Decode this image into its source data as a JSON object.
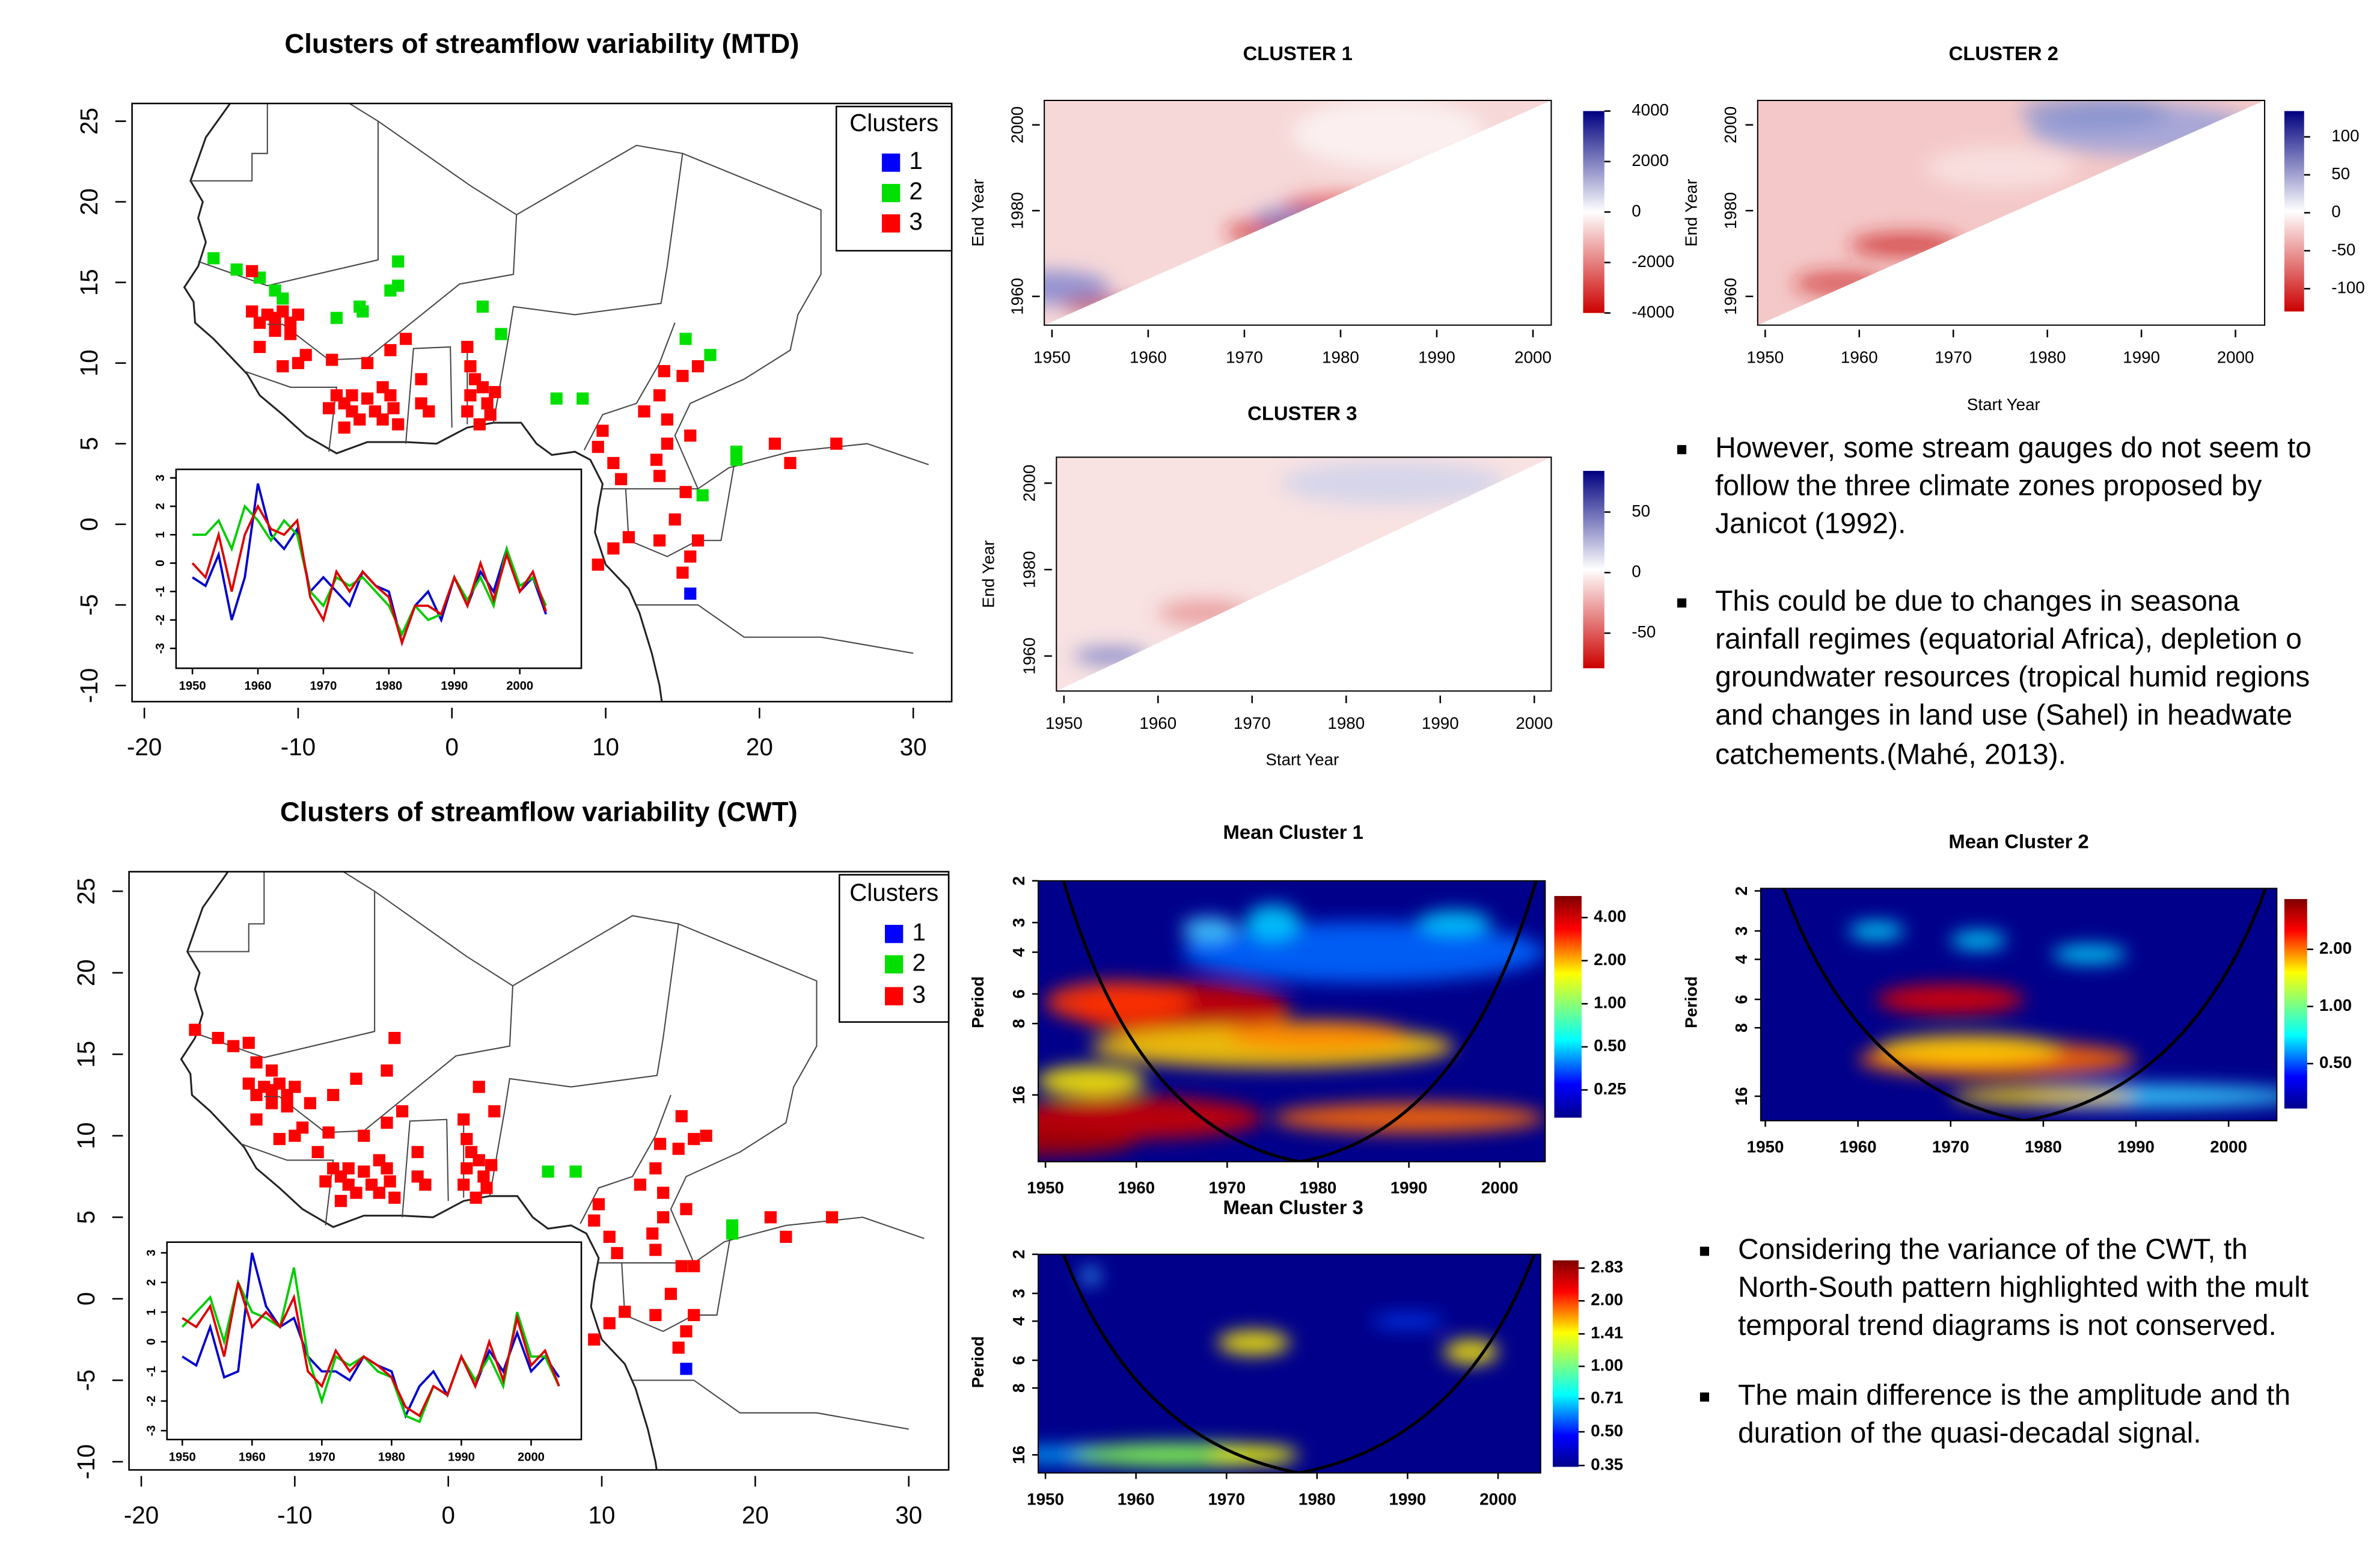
{
  "maps": [
    {
      "title": "Clusters of streamflow variability (MTD)",
      "xlim": [
        -20.8,
        32.5
      ],
      "ylim": [
        -11,
        26.1
      ],
      "xticks": [
        -20,
        -10,
        0,
        10,
        20,
        30
      ],
      "yticks": [
        -10,
        -5,
        0,
        5,
        10,
        15,
        20,
        25
      ],
      "legend_title": "Clusters",
      "series": [
        {
          "name": "1",
          "color": "#0000ff",
          "lon": [
            15.5
          ],
          "lat": [
            -4.3
          ]
        },
        {
          "name": "2",
          "color": "#00e000",
          "lon": [
            -15.5,
            -14,
            -12.5,
            -11.5,
            -11,
            -7.5,
            -5.8,
            -4,
            -3.5,
            -3.5,
            -6,
            2,
            3.2,
            6.8,
            8.5,
            15.2,
            16.8,
            18.5,
            18.5,
            16.3
          ],
          "lat": [
            16.5,
            15.8,
            15.3,
            14.5,
            14,
            12.8,
            13.2,
            14.5,
            14.8,
            16.3,
            13.5,
            13.5,
            11.8,
            7.8,
            7.8,
            11.5,
            10.5,
            4.5,
            4,
            1.8
          ]
        },
        {
          "name": "3",
          "color": "#ff0000",
          "lon": [
            -13,
            -13,
            -12.5,
            -12,
            -11.5,
            -11,
            -10.5,
            -10,
            -11.5,
            -10.5,
            -9.5,
            -10,
            -11,
            -12.5,
            -7.8,
            -5.5,
            -4,
            -3,
            -7.5,
            -8,
            -7,
            -6.5,
            -6,
            -5.5,
            -5,
            -4.5,
            -3.5,
            -3.8,
            -4,
            -6.5,
            -7,
            -4.5,
            -2,
            -2,
            -1.5,
            1,
            1.2,
            1.5,
            2,
            1.2,
            2.3,
            1,
            2.5,
            1.8,
            2.8,
            9.8,
            9.5,
            10.5,
            11,
            13.5,
            13.3,
            14,
            12.5,
            13.5,
            13.8,
            15,
            16,
            14,
            15.2,
            14.5,
            13.5,
            15.5,
            16,
            15,
            10.5,
            11.5,
            9.5,
            21,
            22,
            25,
            15.5
          ],
          "lat": [
            15.7,
            13.2,
            12.5,
            13,
            12.8,
            13.2,
            12.5,
            13,
            12,
            11.8,
            10.5,
            10,
            9.8,
            11,
            10.2,
            10,
            10.8,
            11.5,
            8,
            7.2,
            7.5,
            7,
            6.5,
            7.8,
            7,
            6.5,
            6.2,
            7.2,
            8,
            8,
            6,
            8.5,
            9,
            7.5,
            7,
            11,
            9.8,
            9,
            8.5,
            8,
            7.5,
            7,
            6.8,
            6.2,
            8.2,
            5.8,
            4.8,
            3.8,
            2.8,
            3,
            4,
            5,
            7,
            8,
            9.5,
            9.2,
            9.8,
            6.5,
            2,
            0.3,
            -1,
            -2,
            -1,
            -3,
            -1.5,
            -0.8,
            -2.5,
            5,
            3.8,
            5,
            5.5
          ]
        }
      ],
      "inset": {
        "xlim": [
          1947.5,
          2009.4
        ],
        "ylim": [
          -3.7,
          3.3
        ],
        "xticks": [
          1950,
          1960,
          1970,
          1980,
          1990,
          2000
        ],
        "yticks": [
          -3,
          -2,
          -1,
          0,
          1,
          2,
          3
        ],
        "x": [
          1950,
          1952,
          1954,
          1956,
          1958,
          1960,
          1962,
          1964,
          1966,
          1968,
          1970,
          1972,
          1974,
          1976,
          1978,
          1980,
          1982,
          1984,
          1986,
          1988,
          1990,
          1992,
          1994,
          1996,
          1998,
          2000,
          2002,
          2004
        ],
        "series": [
          {
            "color": "#0000cc",
            "values": [
              -0.5,
              -0.8,
              0.3,
              -2,
              -0.5,
              2.8,
              1,
              0.5,
              1.2,
              -1,
              -0.5,
              -1,
              -1.5,
              -0.3,
              -0.8,
              -1,
              -2.8,
              -1.5,
              -1,
              -2,
              -0.5,
              -1.5,
              -0.3,
              -1,
              0.5,
              -1,
              -0.5,
              -1.8
            ]
          },
          {
            "color": "#00cc00",
            "values": [
              1,
              1,
              1.5,
              0.5,
              2,
              1.5,
              0.8,
              1.5,
              1,
              -1,
              -1.5,
              -0.5,
              -0.8,
              -0.5,
              -1,
              -1.5,
              -2.5,
              -1.5,
              -2,
              -1.8,
              -0.5,
              -1.3,
              -0.5,
              -1.5,
              0.5,
              -0.8,
              -0.5,
              -1.5
            ]
          },
          {
            "color": "#dd0000",
            "values": [
              0,
              -0.5,
              1,
              -1,
              1,
              2,
              1.2,
              1,
              1.5,
              -1.2,
              -2,
              -0.3,
              -1,
              -0.3,
              -0.8,
              -1.2,
              -2.8,
              -1.5,
              -1.5,
              -1.8,
              -0.5,
              -1.5,
              0,
              -1.3,
              0.3,
              -1,
              -0.3,
              -1.7
            ]
          }
        ]
      }
    },
    {
      "title": "Clusters of streamflow variability (CWT)",
      "xlim": [
        -20.8,
        32.6
      ],
      "ylim": [
        -10.5,
        26.2
      ],
      "xticks": [
        -20,
        -10,
        0,
        10,
        20,
        30
      ],
      "yticks": [
        -10,
        -5,
        0,
        5,
        10,
        15,
        20,
        25
      ],
      "legend_title": "Clusters",
      "series": [
        {
          "name": "1",
          "color": "#0000ff",
          "lon": [
            15.5
          ],
          "lat": [
            -4.3
          ]
        },
        {
          "name": "2",
          "color": "#00e000",
          "lon": [
            6.5,
            8.3,
            18.5,
            18.5
          ],
          "lat": [
            7.8,
            7.8,
            4.5,
            4
          ]
        },
        {
          "name": "3",
          "color": "#ff0000",
          "lon": [
            -13,
            -13,
            -12.5,
            -12,
            -11.5,
            -11,
            -10.5,
            -10,
            -11.5,
            -10.5,
            -9.5,
            -10,
            -11,
            -12.5,
            -7.8,
            -5.5,
            -4,
            -3,
            -7.5,
            -8,
            -7,
            -6.5,
            -6,
            -5.5,
            -5,
            -4.5,
            -3.5,
            -3.8,
            -4,
            -6.5,
            -7,
            -4.5,
            -2,
            -2,
            -1.5,
            1,
            1.2,
            1.5,
            2,
            1.2,
            2.3,
            1,
            2.5,
            1.8,
            2.8,
            9.8,
            9.5,
            10.5,
            11,
            13.5,
            13.3,
            14,
            12.5,
            13.5,
            13.8,
            15,
            16,
            14,
            15.2,
            14.5,
            13.5,
            15.5,
            16,
            15,
            10.5,
            11.5,
            9.5,
            21,
            22,
            25,
            15.5,
            -16.5,
            -15,
            -14,
            -12.5,
            -11.5,
            -7.5,
            -6,
            -4,
            -3.5,
            2,
            3,
            15.2,
            16.8,
            16,
            -9,
            -8.5
          ],
          "lat": [
            15.7,
            13.2,
            12.5,
            13,
            12.8,
            13.2,
            12.5,
            13,
            12,
            11.8,
            10.5,
            10,
            9.8,
            11,
            10.2,
            10,
            10.8,
            11.5,
            8,
            7.2,
            7.5,
            7,
            6.5,
            7.8,
            7,
            6.5,
            6.2,
            7.2,
            8,
            8,
            6,
            8.5,
            9,
            7.5,
            7,
            11,
            9.8,
            9,
            8.5,
            8,
            7.5,
            7,
            6.8,
            6.2,
            8.2,
            5.8,
            4.8,
            3.8,
            2.8,
            3,
            4,
            5,
            7,
            8,
            9.5,
            9.2,
            9.8,
            6.5,
            2,
            0.3,
            -1,
            -2,
            -1,
            -3,
            -1.5,
            -0.8,
            -2.5,
            5,
            3.8,
            5,
            5.5,
            16.5,
            16,
            15.5,
            14.5,
            14,
            12.5,
            13.5,
            14,
            16,
            13,
            11.5,
            11.2,
            10,
            2,
            12,
            9
          ]
        }
      ],
      "inset": {
        "xlim": [
          1947.8,
          2007.2
        ],
        "ylim": [
          -3.3,
          3.36
        ],
        "xticks": [
          1950,
          1960,
          1970,
          1980,
          1990,
          2000
        ],
        "yticks": [
          -3,
          -2,
          -1,
          0,
          1,
          2,
          3
        ],
        "x": [
          1950,
          1952,
          1954,
          1956,
          1958,
          1960,
          1962,
          1964,
          1966,
          1968,
          1970,
          1972,
          1974,
          1976,
          1978,
          1980,
          1982,
          1984,
          1986,
          1988,
          1990,
          1992,
          1994,
          1996,
          1998,
          2000,
          2002,
          2004
        ],
        "series": [
          {
            "color": "#0000cc",
            "values": [
              -0.5,
              -0.8,
              0.5,
              -1.2,
              -1,
              3,
              1.2,
              0.5,
              0.8,
              -0.5,
              -1,
              -1,
              -1.3,
              -0.5,
              -0.8,
              -1,
              -2.5,
              -1.5,
              -1,
              -1.8,
              -0.5,
              -1.5,
              -0.3,
              -1,
              0.3,
              -1,
              -0.5,
              -1.2
            ]
          },
          {
            "color": "#00cc00",
            "values": [
              0.5,
              1,
              1.5,
              0,
              2,
              1,
              0.8,
              0.5,
              2.5,
              -0.5,
              -2,
              -0.5,
              -0.8,
              -0.5,
              -1,
              -1.2,
              -2.5,
              -2.7,
              -1.5,
              -1.8,
              -0.5,
              -1.3,
              -0.5,
              -1.5,
              1,
              -0.5,
              -0.5,
              -1.5
            ]
          },
          {
            "color": "#dd0000",
            "values": [
              0.8,
              0.5,
              1.2,
              -0.5,
              2,
              0.5,
              1,
              0.5,
              1.5,
              -1,
              -1.5,
              -0.3,
              -1,
              -0.5,
              -0.8,
              -1.2,
              -2.2,
              -2.5,
              -1.5,
              -1.8,
              -0.5,
              -1.5,
              0,
              -1.3,
              0.8,
              -0.8,
              -0.3,
              -1.5
            ]
          }
        ]
      }
    }
  ],
  "trend_panels": [
    {
      "title": "CLUSTER 1",
      "ylabel": "End Year",
      "xlim": [
        1949.2,
        2001.9
      ],
      "ylim": [
        1953.3,
        2005.7
      ],
      "xticks": [
        1950,
        1960,
        1970,
        1980,
        1990,
        2000
      ],
      "yticks": [
        1960,
        1980,
        2000
      ],
      "cbar_lim": [
        -4000,
        4000
      ],
      "cbar_ticks": [
        -4000,
        -2000,
        0,
        2000,
        4000
      ]
    },
    {
      "title": "CLUSTER 2",
      "ylabel": "End Year",
      "xlabel": "Start Year",
      "xlim": [
        1949.2,
        2003.1
      ],
      "ylim": [
        1953.3,
        2005.7
      ],
      "xticks": [
        1950,
        1960,
        1970,
        1980,
        1990,
        2000
      ],
      "yticks": [
        1960,
        1980,
        2000
      ],
      "cbar_lim": [
        -130,
        134
      ],
      "cbar_ticks": [
        -100,
        -50,
        0,
        50,
        100
      ]
    },
    {
      "title": "CLUSTER 3",
      "ylabel": "End Year",
      "xlabel": "Start Year",
      "xlim": [
        1949.2,
        2001.8
      ],
      "ylim": [
        1951.9,
        2006
      ],
      "xticks": [
        1950,
        1960,
        1970,
        1980,
        1990,
        2000
      ],
      "yticks": [
        1960,
        1980,
        2000
      ],
      "cbar_lim": [
        -79,
        84
      ],
      "cbar_ticks": [
        -50,
        0,
        50
      ]
    }
  ],
  "wavelet_panels": [
    {
      "title": "Mean Cluster 1",
      "ylabel": "Period",
      "ylog": true,
      "xlim": [
        1949.2,
        2005
      ],
      "ylim": [
        2,
        30.6
      ],
      "xticks": [
        1950,
        1960,
        1970,
        1980,
        1990,
        2000
      ],
      "yticks": [
        2,
        3,
        4,
        6,
        8,
        16
      ],
      "cbar_log": true,
      "cbar_lim": [
        0.16,
        5.66
      ],
      "cbar_ticks": [
        {
          "value": 0.25,
          "label": "0.25"
        },
        {
          "value": 0.5,
          "label": "0.50"
        },
        {
          "value": 1,
          "label": "1.00"
        },
        {
          "value": 2,
          "label": "2.00"
        },
        {
          "value": 4,
          "label": "4.00"
        }
      ]
    },
    {
      "title": "Mean Cluster 2",
      "ylabel": "Period",
      "ylog": true,
      "xlim": [
        1949.5,
        2005.2
      ],
      "ylim": [
        1.95,
        20.5
      ],
      "xticks": [
        1950,
        1960,
        1970,
        1980,
        1990,
        2000
      ],
      "yticks": [
        2,
        3,
        4,
        6,
        8,
        16
      ],
      "cbar_log": true,
      "cbar_lim": [
        0.29,
        3.68
      ],
      "cbar_ticks": [
        {
          "value": 0.5,
          "label": "0.50"
        },
        {
          "value": 1,
          "label": "1.00"
        },
        {
          "value": 2,
          "label": "2.00"
        }
      ]
    },
    {
      "title": "Mean Cluster 3",
      "ylabel": "Period",
      "ylog": true,
      "xlim": [
        1949.2,
        2004.7
      ],
      "ylim": [
        2,
        19.3
      ],
      "xticks": [
        1950,
        1960,
        1970,
        1980,
        1990,
        2000
      ],
      "yticks": [
        2,
        3,
        4,
        6,
        8,
        16
      ],
      "cbar_log": true,
      "cbar_lim": [
        0.345,
        3.07
      ],
      "cbar_ticks": [
        0.35,
        {
          "value": 0.5,
          "label": "0.50"
        },
        0.71,
        {
          "value": 1,
          "label": "1.00"
        },
        1.41,
        {
          "value": 2,
          "label": "2.00"
        },
        2.83
      ]
    }
  ],
  "bullets": [
    {
      "lines": [
        "However, some stream gauges do not seem to",
        "follow the three climate zones proposed by",
        "Janicot (1992)."
      ]
    },
    {
      "lines": [
        "This could be due to changes in seasona",
        "rainfall regimes (equatorial Africa), depletion o",
        "groundwater resources (tropical humid regions",
        "and changes in land use (Sahel) in headwate",
        "catchements.(Mahé, 2013)."
      ]
    },
    {
      "lines": [
        "Considering the variance of the CWT, th",
        "North-South pattern highlighted with the mult",
        "temporal trend diagrams is not conserved."
      ]
    },
    {
      "lines": [
        "The main difference is the amplitude and th",
        "duration of the quasi-decadal signal."
      ]
    }
  ]
}
